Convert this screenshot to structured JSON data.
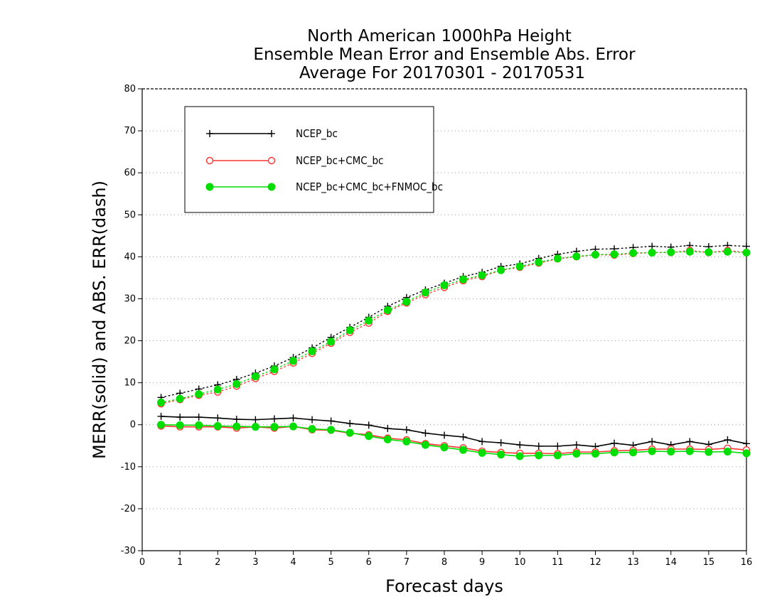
{
  "chart_data": {
    "type": "line",
    "title": [
      "North American 1000hPa Height",
      "Ensemble Mean Error and Ensemble Abs. Error",
      "Average For 20170301 - 20170531"
    ],
    "xlabel": "Forecast days",
    "ylabel": "MERR(solid) and ABS. ERR(dash)",
    "xlim": [
      0,
      16
    ],
    "ylim": [
      -30,
      80
    ],
    "xticks": [
      0,
      1,
      2,
      3,
      4,
      5,
      6,
      7,
      8,
      9,
      10,
      11,
      12,
      13,
      14,
      15,
      16
    ],
    "yticks": [
      -30,
      -20,
      -10,
      0,
      10,
      20,
      30,
      40,
      50,
      60,
      70,
      80
    ],
    "grid": "horizontal-dotted",
    "legend_position": "top-left",
    "x": [
      0.5,
      1,
      1.5,
      2,
      2.5,
      3,
      3.5,
      4,
      4.5,
      5,
      5.5,
      6,
      6.5,
      7,
      7.5,
      8,
      8.5,
      9,
      9.5,
      10,
      10.5,
      11,
      11.5,
      12,
      12.5,
      13,
      13.5,
      14,
      14.5,
      15,
      15.5,
      16
    ],
    "series": [
      {
        "name": "NCEP_bc",
        "color": "#000000",
        "marker": "plus",
        "merr": [
          2.0,
          1.8,
          1.8,
          1.6,
          1.3,
          1.2,
          1.4,
          1.6,
          1.2,
          0.9,
          0.3,
          -0.1,
          -0.9,
          -1.2,
          -2.0,
          -2.5,
          -2.9,
          -4.0,
          -4.3,
          -4.8,
          -5.1,
          -5.1,
          -4.8,
          -5.2,
          -4.4,
          -4.9,
          -4.0,
          -4.8,
          -4.0,
          -4.7,
          -3.6,
          -4.5
        ],
        "abs_err": [
          6.5,
          7.5,
          8.5,
          9.5,
          10.8,
          12.3,
          14.0,
          16.0,
          18.3,
          20.8,
          23.2,
          25.6,
          28.2,
          30.3,
          32.1,
          33.7,
          35.3,
          36.3,
          37.7,
          38.3,
          39.6,
          40.6,
          41.3,
          41.8,
          41.9,
          42.2,
          42.5,
          42.3,
          42.7,
          42.4,
          42.7,
          42.5
        ]
      },
      {
        "name": "NCEP_bc+CMC_bc",
        "color": "#ff3333",
        "marker": "open-circle",
        "merr": [
          -0.3,
          -0.5,
          -0.5,
          -0.5,
          -0.8,
          -0.5,
          -0.8,
          -0.4,
          -1.2,
          -1.3,
          -2.0,
          -2.4,
          -3.2,
          -3.6,
          -4.5,
          -5.0,
          -5.5,
          -6.3,
          -6.6,
          -6.8,
          -6.8,
          -6.9,
          -6.5,
          -6.5,
          -6.2,
          -6.1,
          -5.8,
          -5.8,
          -5.8,
          -5.9,
          -5.6,
          -6.0
        ],
        "abs_err": [
          5.0,
          6.0,
          7.0,
          7.8,
          9.2,
          11.0,
          12.7,
          14.7,
          17.0,
          19.4,
          22.0,
          24.2,
          27.0,
          29.0,
          31.0,
          32.7,
          34.3,
          35.3,
          36.8,
          37.5,
          38.5,
          39.5,
          40.0,
          40.5,
          40.4,
          40.8,
          41.0,
          41.0,
          41.5,
          41.0,
          41.5,
          41.0
        ]
      },
      {
        "name": "NCEP_bc+CMC_bc+FNMOC_bc",
        "color": "#00dd00",
        "marker": "filled-circle",
        "merr": [
          0.0,
          -0.1,
          -0.1,
          -0.3,
          -0.4,
          -0.5,
          -0.5,
          -0.4,
          -1.0,
          -1.2,
          -1.9,
          -2.7,
          -3.5,
          -4.0,
          -4.8,
          -5.4,
          -6.0,
          -6.7,
          -7.1,
          -7.5,
          -7.3,
          -7.3,
          -6.9,
          -6.9,
          -6.6,
          -6.6,
          -6.3,
          -6.4,
          -6.3,
          -6.5,
          -6.4,
          -6.8
        ],
        "abs_err": [
          5.3,
          6.2,
          7.3,
          8.4,
          9.7,
          11.5,
          13.2,
          15.2,
          17.5,
          19.8,
          22.5,
          24.8,
          27.3,
          29.3,
          31.5,
          33.2,
          34.6,
          35.6,
          36.8,
          37.7,
          38.7,
          39.6,
          40.1,
          40.5,
          40.6,
          40.9,
          41.0,
          41.1,
          41.2,
          41.1,
          41.2,
          41.0
        ]
      }
    ]
  }
}
